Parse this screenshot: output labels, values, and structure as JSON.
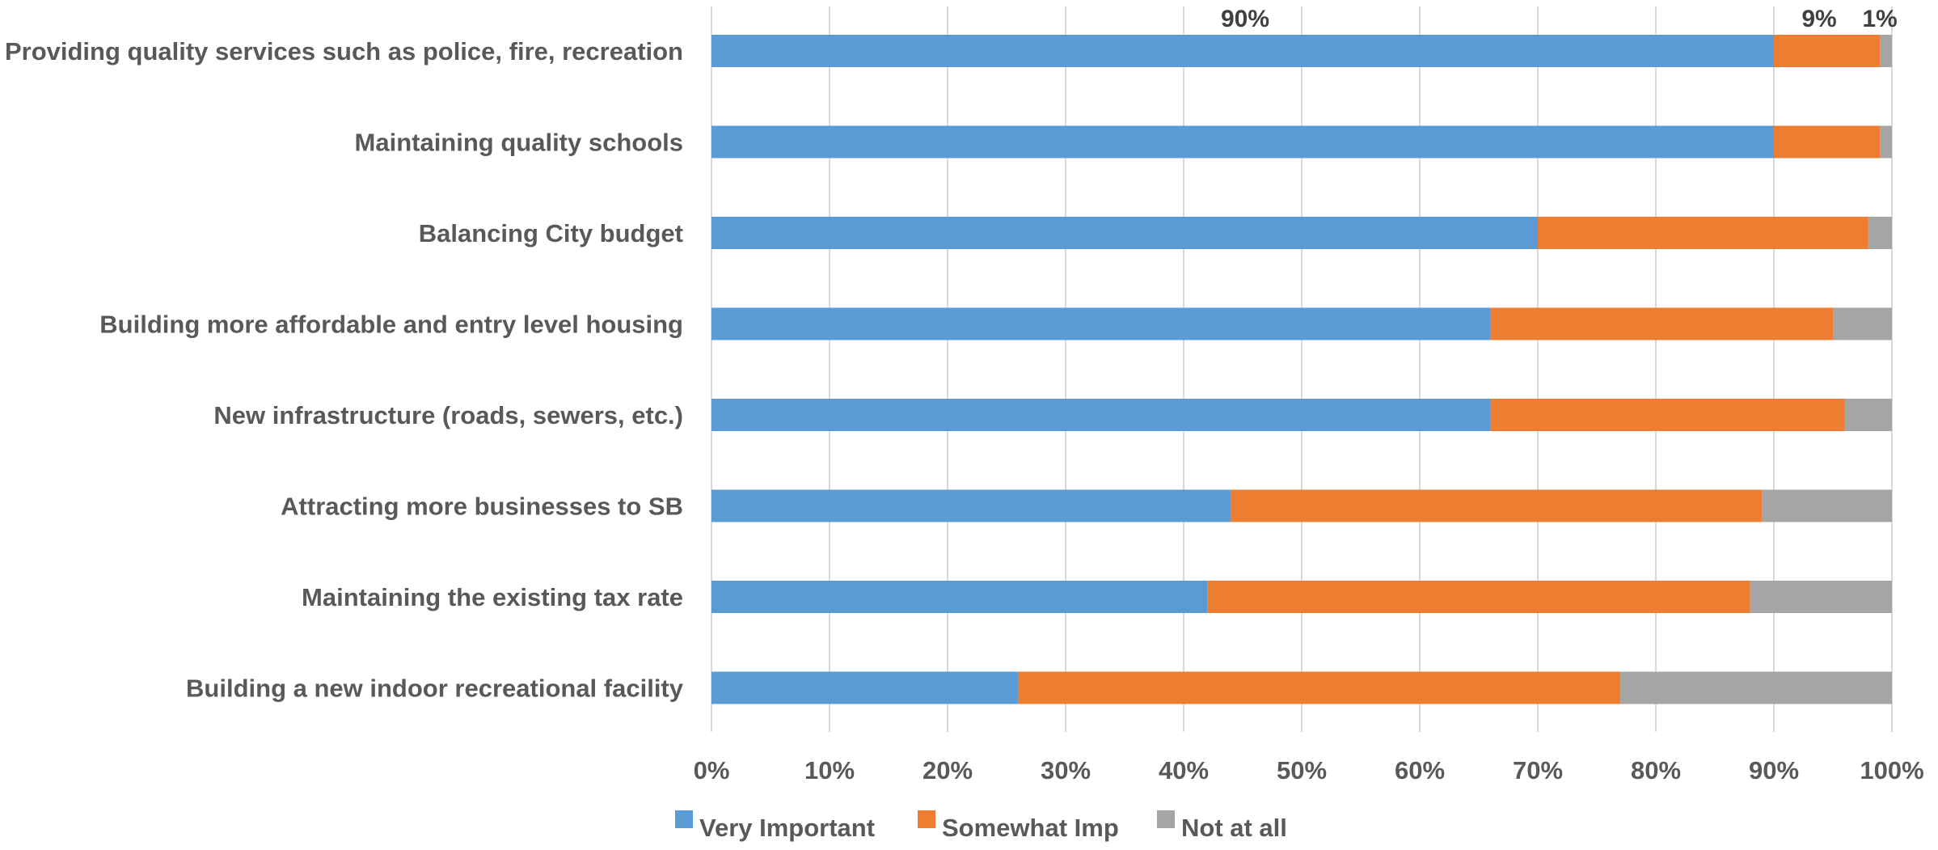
{
  "chart_data": {
    "type": "bar",
    "orientation": "horizontal",
    "stacked": "percent",
    "title": "",
    "xlabel": "",
    "ylabel": "",
    "xlim": [
      0,
      100
    ],
    "x_ticks": [
      "0%",
      "10%",
      "20%",
      "30%",
      "40%",
      "50%",
      "60%",
      "70%",
      "80%",
      "90%",
      "100%"
    ],
    "grid": true,
    "legend_position": "bottom",
    "categories": [
      "Providing quality services such as police, fire, recreation",
      "Maintaining quality schools",
      "Balancing City budget",
      "Building more affordable and entry level housing",
      "New infrastructure (roads, sewers, etc.)",
      "Attracting more businesses to SB",
      "Maintaining the existing tax rate",
      "Building a new indoor recreational facility"
    ],
    "series": [
      {
        "name": "Very Important",
        "color": "#5b9bd5",
        "values": [
          90,
          90,
          70,
          66,
          66,
          44,
          42,
          26
        ]
      },
      {
        "name": "Somewhat Imp",
        "color": "#ed7d31",
        "values": [
          9,
          9,
          28,
          29,
          30,
          45,
          46,
          51
        ]
      },
      {
        "name": "Not at all",
        "color": "#a5a5a5",
        "values": [
          1,
          1,
          2,
          5,
          4,
          11,
          12,
          23
        ]
      }
    ],
    "data_labels": [
      {
        "category": 0,
        "series": 0,
        "text": "90%"
      },
      {
        "category": 0,
        "series": 1,
        "text": "9%"
      },
      {
        "category": 0,
        "series": 2,
        "text": "1%"
      }
    ]
  }
}
